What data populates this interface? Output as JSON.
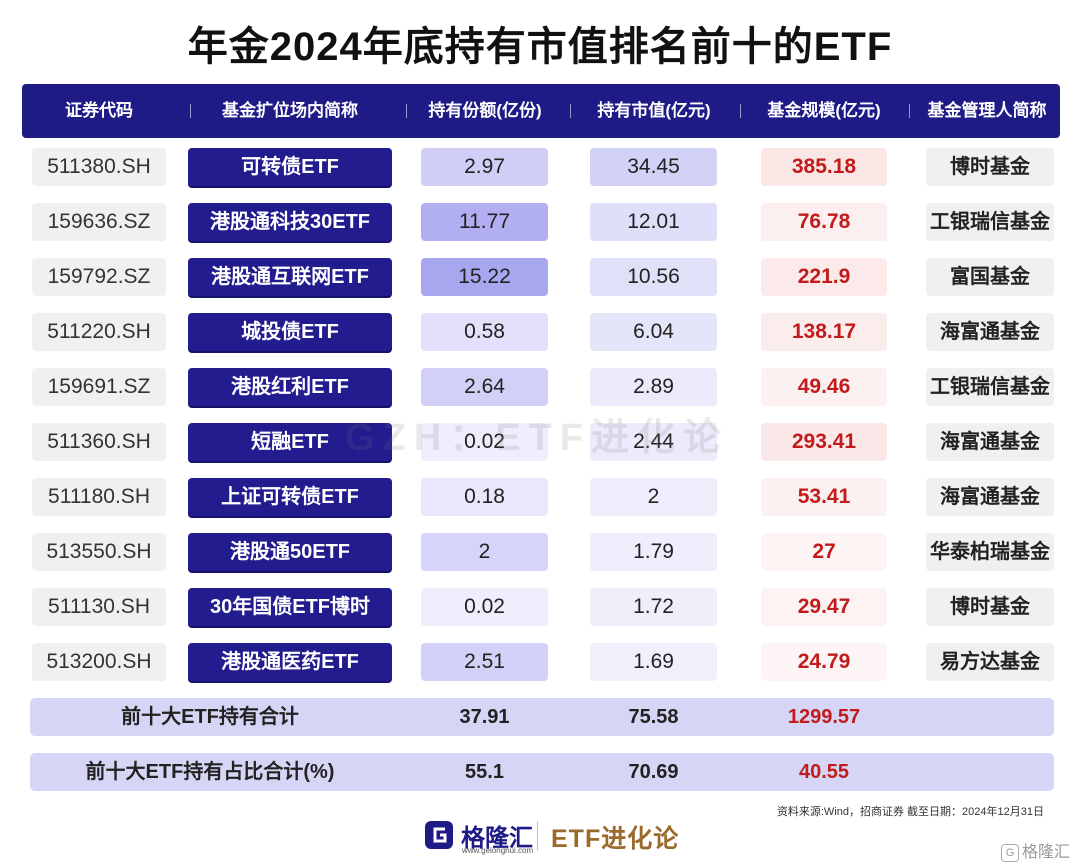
{
  "title": "年金2024年底持有市值排名前十的ETF",
  "headers": [
    "证券代码",
    "基金扩位场内简称",
    "持有份额(亿份)",
    "持有市值(亿元)",
    "基金规模(亿元)",
    "基金管理人简称"
  ],
  "rows": [
    {
      "code": "511380.SH",
      "name": "可转债ETF",
      "shares": "2.97",
      "value": "34.45",
      "scale": "385.18",
      "manager": "博时基金"
    },
    {
      "code": "159636.SZ",
      "name": "港股通科技30ETF",
      "shares": "11.77",
      "value": "12.01",
      "scale": "76.78",
      "manager": "工银瑞信基金"
    },
    {
      "code": "159792.SZ",
      "name": "港股通互联网ETF",
      "shares": "15.22",
      "value": "10.56",
      "scale": "221.9",
      "manager": "富国基金"
    },
    {
      "code": "511220.SH",
      "name": "城投债ETF",
      "shares": "0.58",
      "value": "6.04",
      "scale": "138.17",
      "manager": "海富通基金"
    },
    {
      "code": "159691.SZ",
      "name": "港股红利ETF",
      "shares": "2.64",
      "value": "2.89",
      "scale": "49.46",
      "manager": "工银瑞信基金"
    },
    {
      "code": "511360.SH",
      "name": "短融ETF",
      "shares": "0.02",
      "value": "2.44",
      "scale": "293.41",
      "manager": "海富通基金"
    },
    {
      "code": "511180.SH",
      "name": "上证可转债ETF",
      "shares": "0.18",
      "value": "2",
      "scale": "53.41",
      "manager": "海富通基金"
    },
    {
      "code": "513550.SH",
      "name": "港股通50ETF",
      "shares": "2",
      "value": "1.79",
      "scale": "27",
      "manager": "华泰柏瑞基金"
    },
    {
      "code": "511130.SH",
      "name": "30年国债ETF博时",
      "shares": "0.02",
      "value": "1.72",
      "scale": "29.47",
      "manager": "博时基金"
    },
    {
      "code": "513200.SH",
      "name": "港股通医药ETF",
      "shares": "2.51",
      "value": "1.69",
      "scale": "24.79",
      "manager": "易方达基金"
    }
  ],
  "totals": [
    {
      "label": "前十大ETF持有合计",
      "shares": "37.91",
      "value": "75.58",
      "scale": "1299.57"
    },
    {
      "label": "前十大ETF持有占比合计(%)",
      "shares": "55.1",
      "value": "70.69",
      "scale": "40.55"
    }
  ],
  "watermark": "GZH：ETF进化论",
  "source": "资料来源:Wind，招商证券 截至日期：2024年12月31日",
  "footer": {
    "brand": "格隆汇",
    "brand_url": "www.gelonghui.com",
    "brand2": "ETF进化论",
    "corner": "格隆汇"
  },
  "colors": {
    "header_bg": "#1e1a86",
    "name_bg": "#221c8f",
    "scale_text": "#c11b1b",
    "total_bg": "#d6d5f5",
    "shares_max": "#a9a6f0",
    "shares_min": "#efeefc",
    "value_max": "#d2d1f6",
    "value_min": "#f0f0fc",
    "scale_max": "#fbe6e6",
    "scale_min": "#fdf5f5"
  },
  "chart_data": {
    "type": "table",
    "columns": [
      "证券代码",
      "基金扩位场内简称",
      "持有份额(亿份)",
      "持有市值(亿元)",
      "基金规模(亿元)",
      "基金管理人简称"
    ],
    "shares": [
      2.97,
      11.77,
      15.22,
      0.58,
      2.64,
      0.02,
      0.18,
      2,
      0.02,
      2.51
    ],
    "value": [
      34.45,
      12.01,
      10.56,
      6.04,
      2.89,
      2.44,
      2,
      1.79,
      1.72,
      1.69
    ],
    "scale": [
      385.18,
      76.78,
      221.9,
      138.17,
      49.46,
      293.41,
      53.41,
      27,
      29.47,
      24.79
    ]
  }
}
